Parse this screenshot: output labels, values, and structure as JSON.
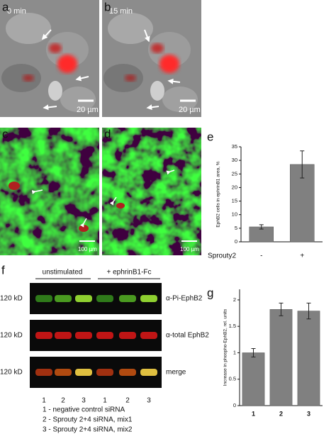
{
  "panel_labels": [
    "a",
    "b",
    "c",
    "d",
    "e",
    "f",
    "g"
  ],
  "images": {
    "a": {
      "time": "0 min",
      "scale": "20 µm"
    },
    "b": {
      "time": "15 min",
      "scale": "20 µm"
    },
    "c": {
      "scale": "100 µm"
    },
    "d": {
      "scale": "100 µm"
    }
  },
  "blot": {
    "groups": [
      "unstimulated",
      "+ ephrinB1-Fc"
    ],
    "rows": [
      {
        "size": "120 kD",
        "label": "α-Pi-EphB2"
      },
      {
        "size": "120 kD",
        "label": "α-total EphB2"
      },
      {
        "size": "120 kD",
        "label": "merge"
      }
    ],
    "lanes": [
      "1",
      "2",
      "3",
      "1",
      "2",
      "3"
    ],
    "legend": [
      "1 - negative control siRNA",
      "2 - Sprouty 2+4 siRNA, mix1",
      "3 - Sprouty 2+4 siRNA, mix2"
    ]
  },
  "chart_data": [
    {
      "type": "bar",
      "y_label": "EphB2 cells in ephrinB1 area, %",
      "x_label": "Sprouty2",
      "categories": [
        "-",
        "+"
      ],
      "values": [
        5.5,
        28.5
      ],
      "errors": [
        0.8,
        5
      ],
      "color": "#808080",
      "ylim": [
        0,
        35
      ],
      "yticks": [
        0,
        5,
        10,
        15,
        20,
        25,
        30,
        35
      ]
    },
    {
      "type": "bar",
      "y_label": "Increase in phospho-EphB2, rel. units",
      "categories": [
        "1",
        "2",
        "3"
      ],
      "values": [
        1.0,
        1.82,
        1.79
      ],
      "errors": [
        0.08,
        0.12,
        0.15
      ],
      "color": "#808080",
      "ylim": [
        0,
        2.2
      ],
      "yticks": [
        0,
        0.5,
        1,
        1.5,
        2
      ]
    }
  ]
}
